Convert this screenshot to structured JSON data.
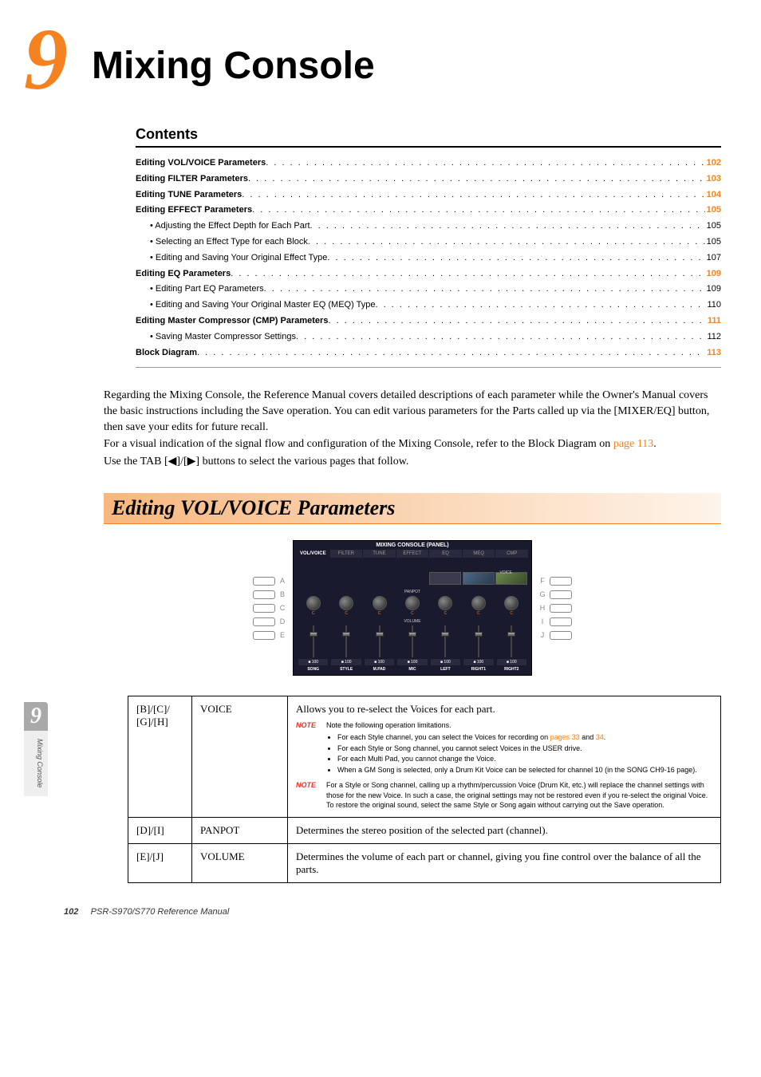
{
  "chapter": {
    "number": "9",
    "title": "Mixing Console"
  },
  "contents": {
    "heading": "Contents",
    "items": [
      {
        "label": "Editing VOL/VOICE Parameters",
        "page": "102",
        "bold": true,
        "sub": false
      },
      {
        "label": "Editing FILTER Parameters",
        "page": "103",
        "bold": true,
        "sub": false
      },
      {
        "label": "Editing TUNE Parameters",
        "page": "104",
        "bold": true,
        "sub": false
      },
      {
        "label": "Editing EFFECT Parameters",
        "page": "105",
        "bold": true,
        "sub": false
      },
      {
        "label": "• Adjusting the Effect Depth for Each Part",
        "page": "105",
        "bold": false,
        "sub": true
      },
      {
        "label": "• Selecting an Effect Type for each Block",
        "page": "105",
        "bold": false,
        "sub": true
      },
      {
        "label": "• Editing and Saving Your Original Effect Type",
        "page": "107",
        "bold": false,
        "sub": true
      },
      {
        "label": "Editing EQ Parameters",
        "page": "109",
        "bold": true,
        "sub": false
      },
      {
        "label": "• Editing Part EQ Parameters",
        "page": "109",
        "bold": false,
        "sub": true
      },
      {
        "label": "• Editing and Saving Your Original Master EQ (MEQ) Type",
        "page": "110",
        "bold": false,
        "sub": true
      },
      {
        "label": "Editing Master Compressor (CMP) Parameters",
        "page": "111",
        "bold": true,
        "sub": false
      },
      {
        "label": "• Saving Master Compressor Settings",
        "page": "112",
        "bold": false,
        "sub": true
      },
      {
        "label": "Block Diagram",
        "page": "113",
        "bold": true,
        "sub": false
      }
    ]
  },
  "intro": {
    "p1": "Regarding the Mixing Console, the Reference Manual covers detailed descriptions of each parameter while the Owner's Manual covers the basic instructions including the Save operation. You can edit various parameters for the Parts called up via the [MIXER/EQ] button, then save your edits for future recall.",
    "p2a": "For a visual indication of the signal flow and configuration of the Mixing Console, refer to the Block Diagram on ",
    "p2_link": "page 113",
    "p2b": ".",
    "p3": "Use the TAB [◀]/[▶] buttons to select the various pages that follow."
  },
  "section": {
    "heading": "Editing VOL/VOICE Parameters"
  },
  "screen": {
    "title": "MIXING CONSOLE (PANEL)",
    "tabs": [
      "VOL/VOICE",
      "FILTER",
      "TUNE",
      "EFFECT",
      "EQ",
      "MEQ",
      "CMP"
    ],
    "active_tab": 0,
    "left_buttons": [
      "A",
      "B",
      "C",
      "D",
      "E"
    ],
    "right_buttons": [
      "F",
      "G",
      "H",
      "I",
      "J"
    ],
    "voice_label": "VOICE",
    "panpot_label": "PANPOT",
    "knob_value": "C",
    "volume_label": "VOLUME",
    "fader_value": "100",
    "fader_marker": "■",
    "channels": [
      "SONG",
      "STYLE",
      "M.PAD",
      "MIC",
      "LEFT",
      "RIGHT1",
      "RIGHT2"
    ]
  },
  "table": {
    "rows": [
      {
        "buttons": "[B]/[C]/ [G]/[H]",
        "param": "VOICE",
        "desc": "Allows you to re-select the Voices for each part.",
        "note1_tag": "NOTE",
        "note1_intro": "Note the following operation limitations.",
        "note1_items": [
          {
            "pre": "For each Style channel, you can select the Voices for recording on ",
            "link1": "pages 33",
            "mid": " and ",
            "link2": "34",
            "post": "."
          },
          {
            "text": "For each Style or Song channel, you cannot select Voices in the USER drive."
          },
          {
            "text": "For each Multi Pad, you cannot change the Voice."
          },
          {
            "text": "When a GM Song is selected, only a Drum Kit Voice can be selected for channel 10 (in the SONG CH9-16 page)."
          }
        ],
        "note2_tag": "NOTE",
        "note2_text": "For a Style or Song channel, calling up a rhythm/percussion Voice (Drum Kit, etc.) will replace the channel settings with those for the new Voice. In such a case, the original settings may not be restored even if you re-select the original Voice. To restore the original sound, select the same Style or Song again without carrying out the Save operation."
      },
      {
        "buttons": "[D]/[I]",
        "param": "PANPOT",
        "desc": "Determines the stereo position of the selected part (channel)."
      },
      {
        "buttons": "[E]/[J]",
        "param": "VOLUME",
        "desc": "Determines the volume of each part or channel, giving you fine control over the balance of all the parts."
      }
    ]
  },
  "sidetab": {
    "number": "9",
    "text": "Mixing Console"
  },
  "footer": {
    "pagenum": "102",
    "doc": "PSR-S970/S770 Reference Manual"
  },
  "colors": {
    "accent": "#f58220",
    "note_red": "#e6332a",
    "sidetab_gray": "#a9a9a9",
    "screen_bg": "#1a1a2e"
  }
}
